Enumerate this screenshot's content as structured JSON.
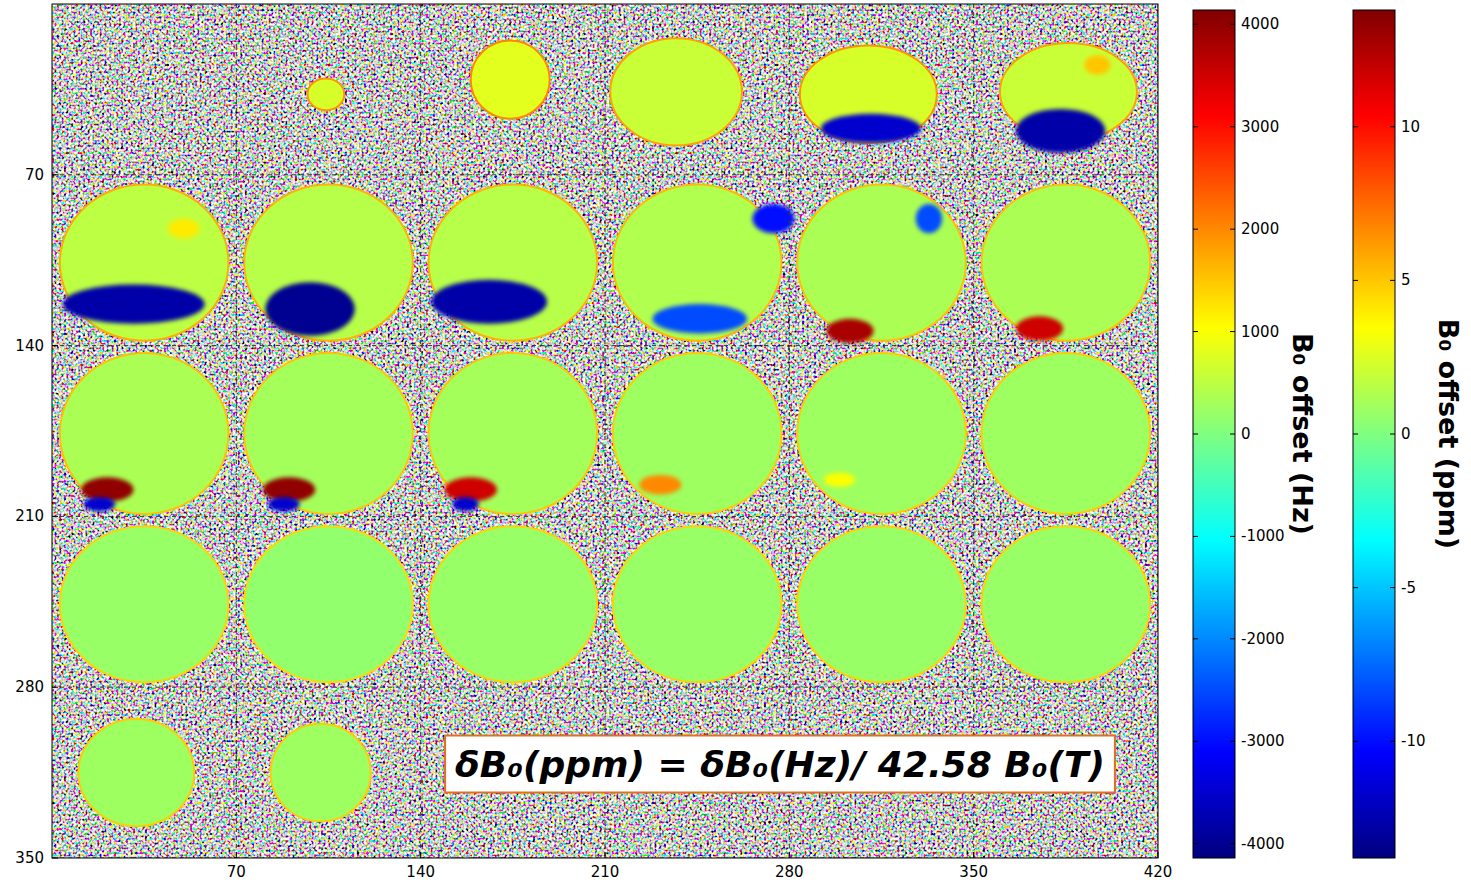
{
  "chart_data": {
    "type": "heatmap",
    "xlim": [
      0,
      420
    ],
    "ylim": [
      350,
      0
    ],
    "xticks": [
      70,
      140,
      210,
      280,
      350,
      420
    ],
    "yticks": [
      70,
      140,
      210,
      280,
      350
    ],
    "grid": true,
    "phantoms": [
      {
        "x": 104,
        "y": 37,
        "rx": 7,
        "ry": 6.5,
        "value": 700
      },
      {
        "x": 174,
        "y": 31,
        "rx": 15,
        "ry": 16,
        "value": 800
      },
      {
        "x": 237,
        "y": 36,
        "rx": 25,
        "ry": 22,
        "value": 600
      },
      {
        "x": 310,
        "y": 37,
        "rx": 26,
        "ry": 20,
        "value": 700
      },
      {
        "x": 386,
        "y": 36,
        "rx": 26,
        "ry": 20,
        "value": 600
      },
      {
        "x": 35,
        "y": 106,
        "rx": 32,
        "ry": 32,
        "value": 500
      },
      {
        "x": 105,
        "y": 106,
        "rx": 32,
        "ry": 32,
        "value": 450
      },
      {
        "x": 175,
        "y": 106,
        "rx": 32,
        "ry": 32,
        "value": 450
      },
      {
        "x": 245,
        "y": 106,
        "rx": 32,
        "ry": 32,
        "value": 400
      },
      {
        "x": 315,
        "y": 106,
        "rx": 32,
        "ry": 32,
        "value": 350
      },
      {
        "x": 385,
        "y": 106,
        "rx": 32,
        "ry": 32,
        "value": 350
      },
      {
        "x": 35,
        "y": 176,
        "rx": 32,
        "ry": 33,
        "value": 350
      },
      {
        "x": 105,
        "y": 176,
        "rx": 32,
        "ry": 33,
        "value": 300
      },
      {
        "x": 175,
        "y": 176,
        "rx": 32,
        "ry": 33,
        "value": 300
      },
      {
        "x": 245,
        "y": 176,
        "rx": 32,
        "ry": 33,
        "value": 250
      },
      {
        "x": 315,
        "y": 176,
        "rx": 32,
        "ry": 33,
        "value": 250
      },
      {
        "x": 385,
        "y": 176,
        "rx": 32,
        "ry": 33,
        "value": 250
      },
      {
        "x": 35,
        "y": 246,
        "rx": 32,
        "ry": 32,
        "value": 200
      },
      {
        "x": 105,
        "y": 246,
        "rx": 32,
        "ry": 32,
        "value": 150
      },
      {
        "x": 175,
        "y": 246,
        "rx": 32,
        "ry": 32,
        "value": 200
      },
      {
        "x": 245,
        "y": 246,
        "rx": 32,
        "ry": 32,
        "value": 200
      },
      {
        "x": 315,
        "y": 246,
        "rx": 32,
        "ry": 32,
        "value": 200
      },
      {
        "x": 385,
        "y": 246,
        "rx": 32,
        "ry": 32,
        "value": 200
      },
      {
        "x": 32,
        "y": 315,
        "rx": 22,
        "ry": 22,
        "value": 250
      },
      {
        "x": 102,
        "y": 315,
        "rx": 19,
        "ry": 20,
        "value": 250
      }
    ],
    "artifacts": [
      {
        "x": 311,
        "y": 51,
        "rx": 19,
        "ry": 6,
        "value": -3500
      },
      {
        "x": 383,
        "y": 52,
        "rx": 17,
        "ry": 9,
        "value": -3800
      },
      {
        "x": 397,
        "y": 25,
        "rx": 5,
        "ry": 4,
        "value": 1500
      },
      {
        "x": 31,
        "y": 123,
        "rx": 27,
        "ry": 8,
        "value": -3800
      },
      {
        "x": 98,
        "y": 125,
        "rx": 17,
        "ry": 11,
        "value": -4000
      },
      {
        "x": 166,
        "y": 122,
        "rx": 22,
        "ry": 9,
        "value": -3800
      },
      {
        "x": 246,
        "y": 129,
        "rx": 18,
        "ry": 6,
        "value": -2500
      },
      {
        "x": 274,
        "y": 88,
        "rx": 8,
        "ry": 6,
        "value": -3000
      },
      {
        "x": 303,
        "y": 134,
        "rx": 9,
        "ry": 5,
        "value": 3800
      },
      {
        "x": 333,
        "y": 88,
        "rx": 5,
        "ry": 6,
        "value": -2500
      },
      {
        "x": 375,
        "y": 133,
        "rx": 9,
        "ry": 5,
        "value": 3500
      },
      {
        "x": 50,
        "y": 92,
        "rx": 6,
        "ry": 4,
        "value": 1200
      },
      {
        "x": 21,
        "y": 199,
        "rx": 10,
        "ry": 5,
        "value": 4000
      },
      {
        "x": 90,
        "y": 199,
        "rx": 10,
        "ry": 5,
        "value": 4000
      },
      {
        "x": 159,
        "y": 199,
        "rx": 10,
        "ry": 5,
        "value": 3500
      },
      {
        "x": 231,
        "y": 197,
        "rx": 8,
        "ry": 4,
        "value": 2000
      },
      {
        "x": 299,
        "y": 195,
        "rx": 6,
        "ry": 3,
        "value": 1000
      },
      {
        "x": 18,
        "y": 205,
        "rx": 6,
        "ry": 3,
        "value": -3500
      },
      {
        "x": 88,
        "y": 205,
        "rx": 6,
        "ry": 3,
        "value": -3500
      },
      {
        "x": 157,
        "y": 205,
        "rx": 5,
        "ry": 3,
        "value": -3500
      }
    ],
    "annotation": "δB₀(ppm) = δB₀(Hz)/ 42.58 B₀(T)",
    "colorbars": [
      {
        "label": "B₀ offset (Hz)",
        "range": [
          -4140,
          4140
        ],
        "ticks": [
          -4000,
          -3000,
          -2000,
          -1000,
          0,
          1000,
          2000,
          3000,
          4000
        ]
      },
      {
        "label": "B₀ offset (ppm)",
        "range": [
          -13.8,
          13.8
        ],
        "ticks": [
          -10,
          -5,
          0,
          5,
          10
        ]
      }
    ]
  }
}
